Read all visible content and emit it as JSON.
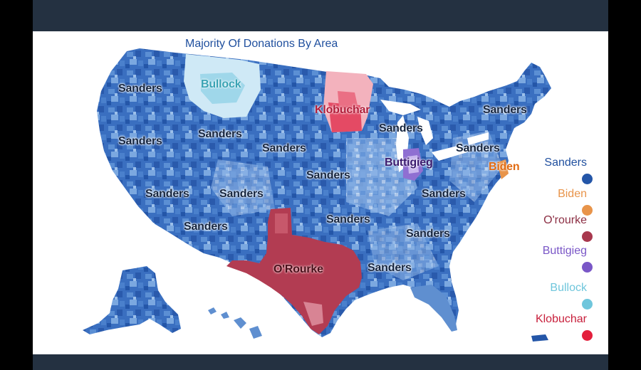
{
  "title": "Majority Of Donations By Area",
  "colors": {
    "sanders": "#2f63b6",
    "biden": "#e8944a",
    "orourke": "#b23c52",
    "buttigieg": "#7a57c7",
    "bullock": "#6fc6dc",
    "klobuchar": "#e31f3c"
  },
  "map": {
    "labels": [
      {
        "text": "Sanders",
        "style": "dark"
      },
      {
        "text": "Bullock",
        "style": "bullock"
      },
      {
        "text": "Klobuchar",
        "style": "klob"
      },
      {
        "text": "Sanders",
        "style": "dark"
      },
      {
        "text": "Sanders",
        "style": "dark"
      },
      {
        "text": "Sanders",
        "style": "dark"
      },
      {
        "text": "Sanders",
        "style": "dark"
      },
      {
        "text": "Sanders",
        "style": "dark"
      },
      {
        "text": "Sanders",
        "style": "dark"
      },
      {
        "text": "Buttigieg",
        "style": "butti"
      },
      {
        "text": "Biden",
        "style": "biden"
      },
      {
        "text": "Sanders",
        "style": "dark"
      },
      {
        "text": "Sanders",
        "style": "dark"
      },
      {
        "text": "Sanders",
        "style": "dark"
      },
      {
        "text": "Sanders",
        "style": "dark"
      },
      {
        "text": "Sanders",
        "style": "dark"
      },
      {
        "text": "Sanders",
        "style": "dark"
      },
      {
        "text": "Sanders",
        "style": "dark"
      },
      {
        "text": "O'Rourke",
        "style": "orourke"
      },
      {
        "text": "Sanders",
        "style": "dark"
      }
    ]
  },
  "legend": [
    {
      "name": "Sanders",
      "text_color": "#1f4f9e",
      "dot_color": "#2456a8"
    },
    {
      "name": "Biden",
      "text_color": "#e8944a",
      "dot_color": "#e8944a"
    },
    {
      "name": "O'rourke",
      "text_color": "#8c2f44",
      "dot_color": "#a8384e"
    },
    {
      "name": "Buttigieg",
      "text_color": "#7a57c7",
      "dot_color": "#7a57c7"
    },
    {
      "name": "Bullock",
      "text_color": "#6fc6dc",
      "dot_color": "#6fc6dc"
    },
    {
      "name": "Klobuchar",
      "text_color": "#c8203c",
      "dot_color": "#e31f3c"
    }
  ]
}
